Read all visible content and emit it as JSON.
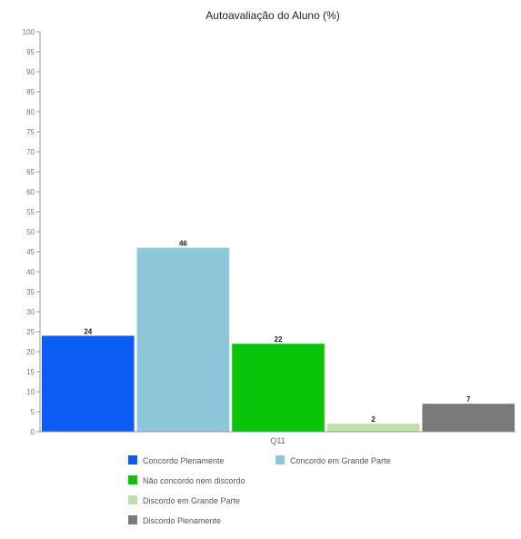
{
  "chart_data": {
    "type": "bar",
    "title": "Autoavaliação do Aluno (%)",
    "xlabel": "",
    "ylabel": "",
    "categories": [
      "Q11"
    ],
    "ylim": [
      0,
      100
    ],
    "yticks": [
      0,
      5,
      10,
      15,
      20,
      25,
      30,
      35,
      40,
      45,
      50,
      55,
      60,
      65,
      70,
      75,
      80,
      85,
      90,
      95,
      100
    ],
    "grid": false,
    "legend_position": "bottom",
    "series": [
      {
        "name": "Concordo Plenamente",
        "values": [
          24
        ],
        "label": "24",
        "color": "#0a5cf5"
      },
      {
        "name": "Concordo em Grande Parte",
        "values": [
          46
        ],
        "label": "46",
        "color": "#8ec6d9"
      },
      {
        "name": "Não concordo nem discordo",
        "values": [
          22
        ],
        "label": "22",
        "color": "#0ac40a"
      },
      {
        "name": "Discordo em Grande Parte",
        "values": [
          2
        ],
        "label": "2",
        "color": "#bde0a8"
      },
      {
        "name": "Discordo Plenamente",
        "values": [
          7
        ],
        "label": "7",
        "color": "#7a7a7a"
      }
    ]
  }
}
